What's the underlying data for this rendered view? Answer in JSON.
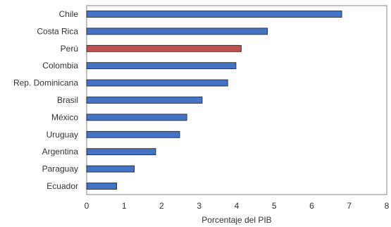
{
  "chart_data": {
    "type": "bar",
    "orientation": "horizontal",
    "categories": [
      "Chile",
      "Costa Rica",
      "Perú",
      "Colombia",
      "Rep. Dominicana",
      "Brasil",
      "México",
      "Uruguay",
      "Argentina",
      "Paraguay",
      "Ecuador"
    ],
    "values": [
      6.8,
      4.82,
      4.12,
      3.98,
      3.76,
      3.08,
      2.67,
      2.48,
      1.84,
      1.27,
      0.8
    ],
    "highlight": "Perú",
    "xlabel": "Porcentaje del PIB",
    "xlim": [
      0,
      8
    ],
    "xticks": [
      0,
      1,
      2,
      3,
      4,
      5,
      6,
      7,
      8
    ],
    "grid": false,
    "colors": {
      "bar": "#4472c4",
      "highlight": "#c0504d",
      "bar_stroke": "#1f1f1f",
      "frame": "#888888"
    }
  }
}
